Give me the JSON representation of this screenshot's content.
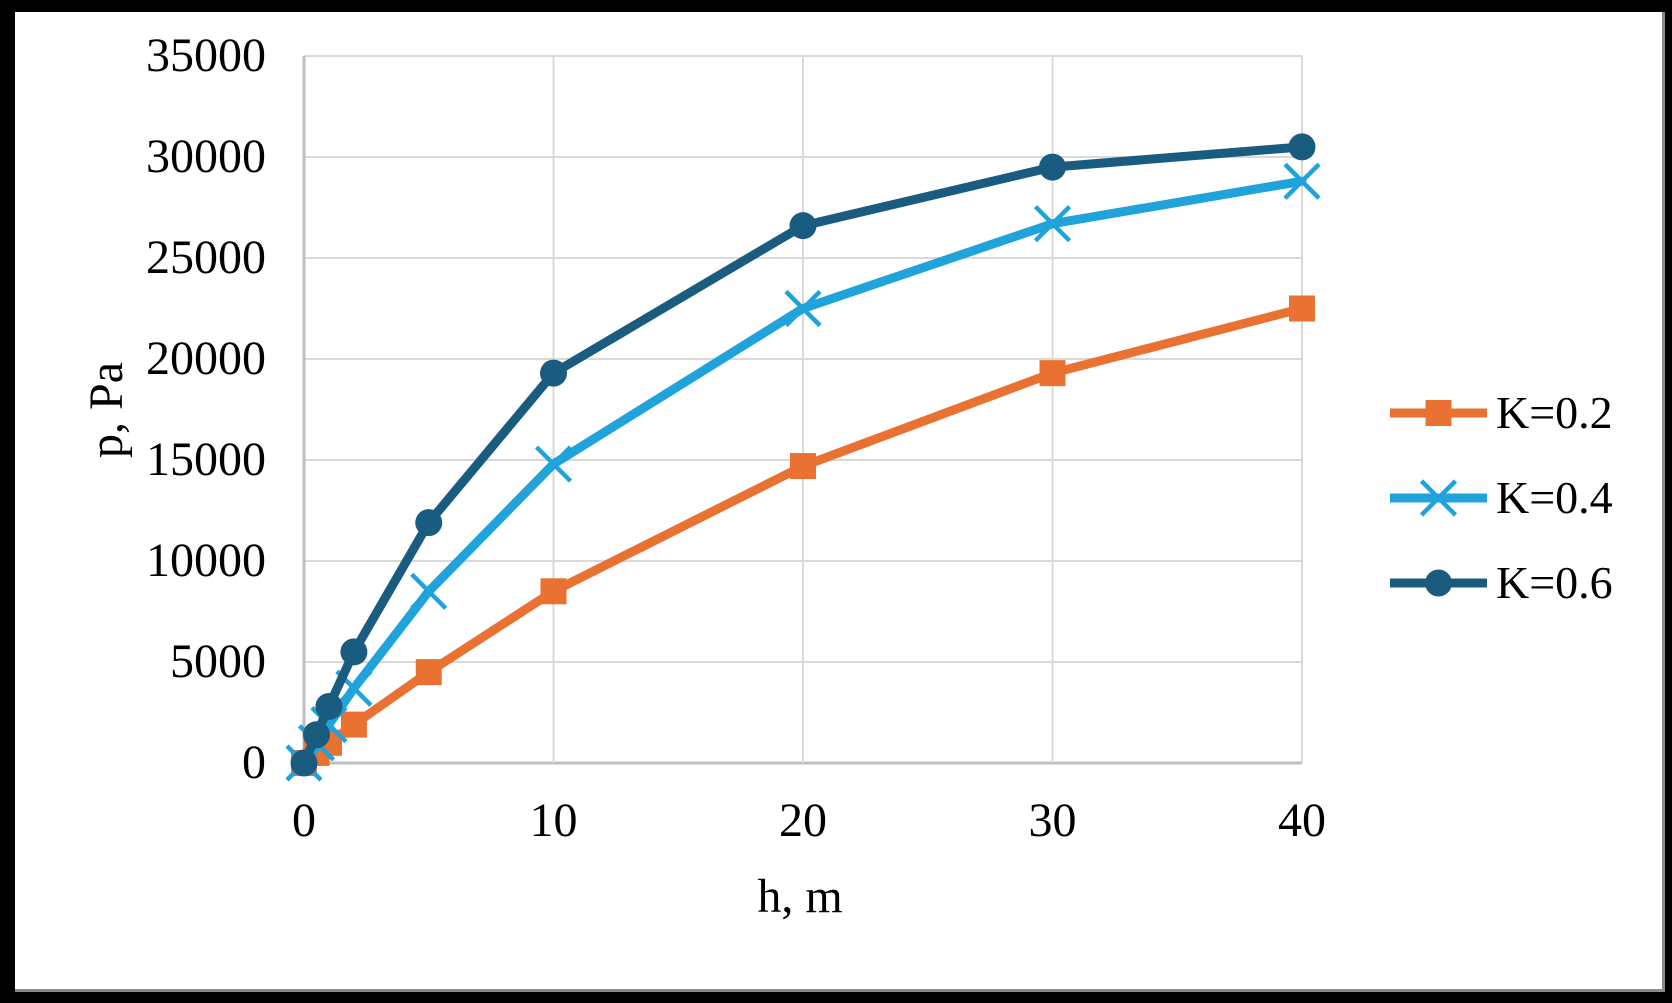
{
  "chart_data": {
    "type": "line",
    "title": "",
    "xlabel": "h, m",
    "ylabel": "p, Pa",
    "x": [
      0,
      0.5,
      1,
      2,
      5,
      10,
      20,
      30,
      40
    ],
    "series": [
      {
        "name": "K=0.2",
        "color": "#E97132",
        "marker": "square",
        "values": [
          0,
          500,
          1000,
          1900,
          4500,
          8500,
          14700,
          19300,
          22500
        ]
      },
      {
        "name": "K=0.4",
        "color": "#20A3DB",
        "marker": "x",
        "values": [
          0,
          1000,
          1900,
          3700,
          8500,
          14800,
          22500,
          26700,
          28800
        ]
      },
      {
        "name": "K=0.6",
        "color": "#1A5C80",
        "marker": "circle",
        "values": [
          0,
          1400,
          2800,
          5500,
          11900,
          19300,
          26600,
          29500,
          30500
        ]
      }
    ],
    "xlim": [
      0,
      40
    ],
    "ylim": [
      0,
      35000
    ],
    "x_ticks": [
      0,
      10,
      20,
      30,
      40
    ],
    "y_ticks": [
      0,
      5000,
      10000,
      15000,
      20000,
      25000,
      30000,
      35000
    ],
    "grid": true,
    "legend_position": "right",
    "colors": {
      "gridline": "#D9D9D9",
      "axis_line": "#BFBFBF",
      "text": "#000000",
      "background": "#FFFFFF",
      "frame": "#000000"
    }
  }
}
